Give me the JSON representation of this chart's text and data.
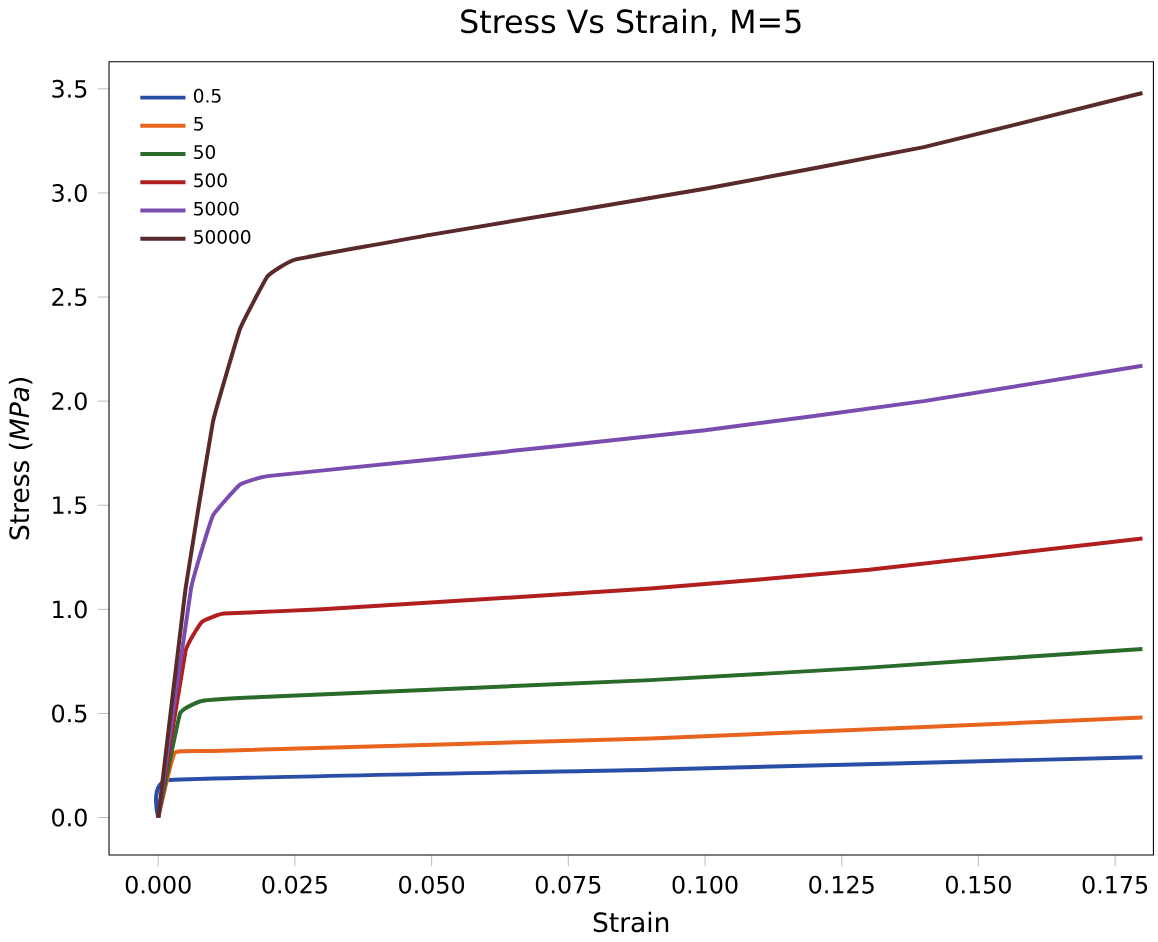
{
  "chart_data": {
    "type": "line",
    "title": "Stress Vs Strain, M=5",
    "xlabel": "Strain",
    "ylabel": "Stress (*MPa*)",
    "xlim": [
      -0.009,
      0.182
    ],
    "ylim": [
      -0.18,
      3.63
    ],
    "xticks": [
      {
        "value": 0,
        "label": "0.000"
      },
      0.025,
      {
        "value": 0.05,
        "label": "0.050"
      },
      0.075,
      {
        "value": 0.1,
        "label": "0.100"
      },
      0.125,
      {
        "value": 0.15,
        "label": "0.150"
      },
      0.175
    ],
    "yticks": [
      {
        "value": 0,
        "label": "0.0"
      },
      0.5,
      {
        "value": 1,
        "label": "1.0"
      },
      1.5,
      {
        "value": 2,
        "label": "2.0"
      },
      2.5,
      {
        "value": 3,
        "label": "3.0"
      },
      3.5
    ],
    "legend": "top left",
    "grid": false,
    "series": [
      {
        "name": "0.5",
        "color": "#2a4ea8",
        "x": [
          0,
          0.002,
          0.09,
          0.18
        ],
        "values": [
          0,
          0.18,
          0.23,
          0.29
        ]
      },
      {
        "name": "5",
        "color": "#e8641e",
        "x": [
          0,
          0.003,
          0.01,
          0.09,
          0.18
        ],
        "values": [
          0,
          0.31,
          0.32,
          0.38,
          0.48
        ]
      },
      {
        "name": "50",
        "color": "#2a6a2a",
        "x": [
          0,
          0.004,
          0.008,
          0.02,
          0.09,
          0.13,
          0.18
        ],
        "values": [
          0,
          0.5,
          0.56,
          0.58,
          0.66,
          0.72,
          0.81
        ]
      },
      {
        "name": "500",
        "color": "#b01e1e",
        "x": [
          0,
          0.005,
          0.008,
          0.012,
          0.03,
          0.09,
          0.13,
          0.18
        ],
        "values": [
          0,
          0.8,
          0.94,
          0.98,
          1.0,
          1.1,
          1.19,
          1.34
        ]
      },
      {
        "name": "5000",
        "color": "#7a4cb0",
        "x": [
          0,
          0.006,
          0.01,
          0.015,
          0.02,
          0.05,
          0.1,
          0.14,
          0.18
        ],
        "values": [
          0,
          1.1,
          1.45,
          1.6,
          1.64,
          1.72,
          1.86,
          2.0,
          2.17
        ]
      },
      {
        "name": "50000",
        "color": "#5a2a2a",
        "x": [
          0,
          0.005,
          0.01,
          0.015,
          0.02,
          0.025,
          0.05,
          0.1,
          0.14,
          0.18
        ],
        "values": [
          0,
          1.1,
          1.9,
          2.35,
          2.6,
          2.68,
          2.8,
          3.02,
          3.22,
          3.48
        ]
      }
    ]
  }
}
